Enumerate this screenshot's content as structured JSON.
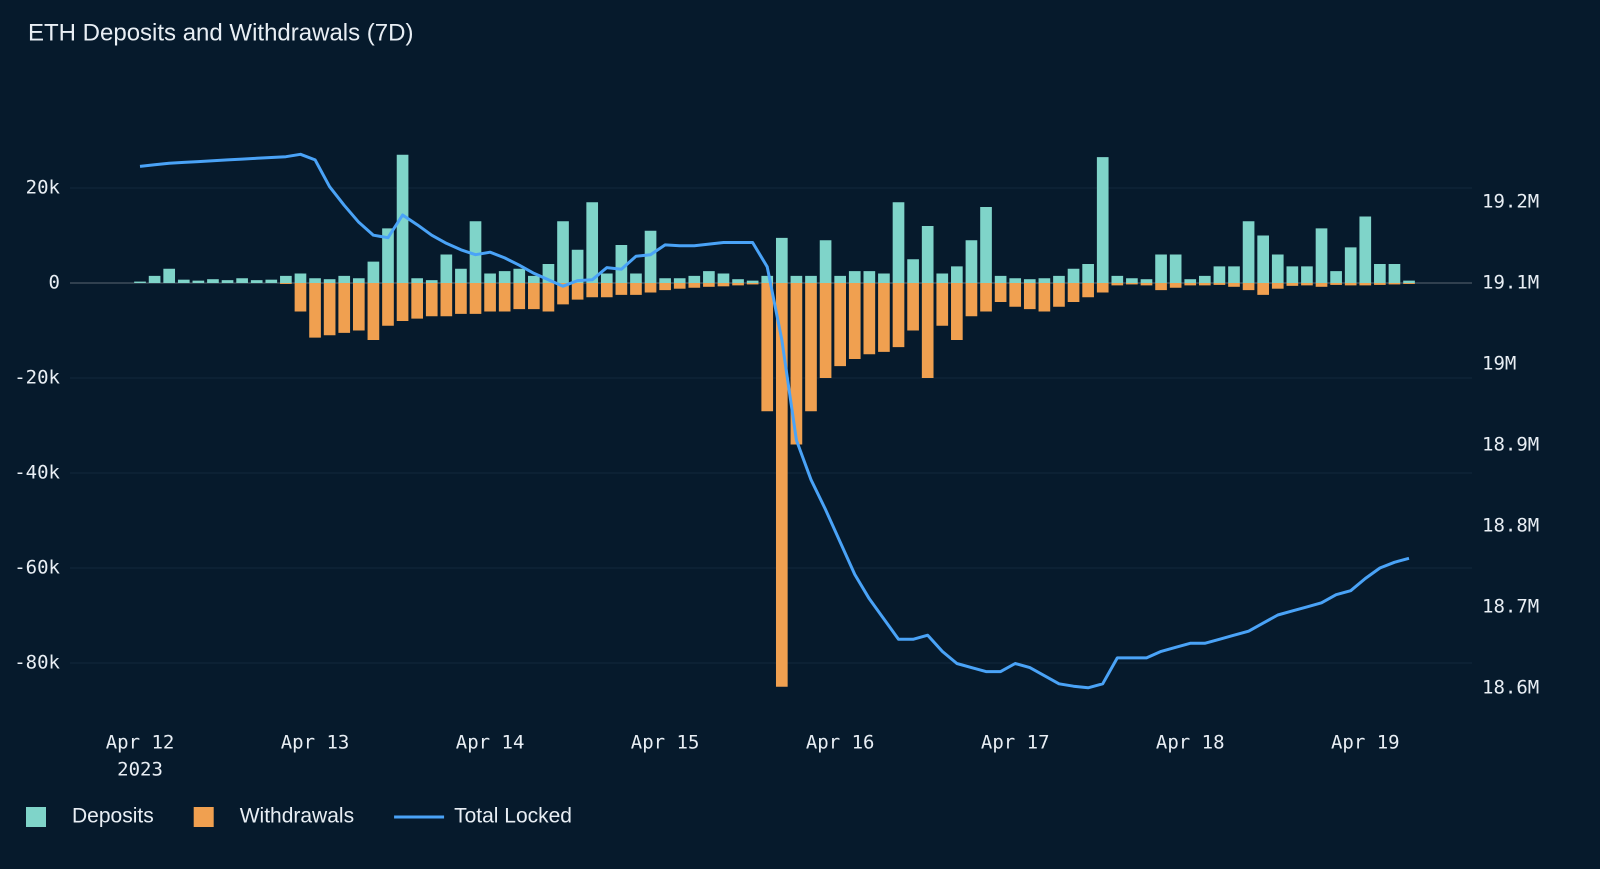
{
  "chart_data": {
    "type": "bar_line",
    "title": "ETH Deposits and Withdrawals (7D)",
    "x": [
      "2023-04-12T00:00",
      "2023-04-12T02:00",
      "2023-04-12T04:00",
      "2023-04-12T06:00",
      "2023-04-12T08:00",
      "2023-04-12T10:00",
      "2023-04-12T12:00",
      "2023-04-12T14:00",
      "2023-04-12T16:00",
      "2023-04-12T18:00",
      "2023-04-12T20:00",
      "2023-04-12T22:00",
      "2023-04-13T00:00",
      "2023-04-13T02:00",
      "2023-04-13T04:00",
      "2023-04-13T06:00",
      "2023-04-13T08:00",
      "2023-04-13T10:00",
      "2023-04-13T12:00",
      "2023-04-13T14:00",
      "2023-04-13T16:00",
      "2023-04-13T18:00",
      "2023-04-13T20:00",
      "2023-04-13T22:00",
      "2023-04-14T00:00",
      "2023-04-14T02:00",
      "2023-04-14T04:00",
      "2023-04-14T06:00",
      "2023-04-14T08:00",
      "2023-04-14T10:00",
      "2023-04-14T12:00",
      "2023-04-14T14:00",
      "2023-04-14T16:00",
      "2023-04-14T18:00",
      "2023-04-14T20:00",
      "2023-04-14T22:00",
      "2023-04-15T00:00",
      "2023-04-15T02:00",
      "2023-04-15T04:00",
      "2023-04-15T06:00",
      "2023-04-15T08:00",
      "2023-04-15T10:00",
      "2023-04-15T12:00",
      "2023-04-15T14:00",
      "2023-04-15T16:00",
      "2023-04-15T18:00",
      "2023-04-15T20:00",
      "2023-04-15T22:00",
      "2023-04-16T00:00",
      "2023-04-16T02:00",
      "2023-04-16T04:00",
      "2023-04-16T06:00",
      "2023-04-16T08:00",
      "2023-04-16T10:00",
      "2023-04-16T12:00",
      "2023-04-16T14:00",
      "2023-04-16T16:00",
      "2023-04-16T18:00",
      "2023-04-16T20:00",
      "2023-04-16T22:00",
      "2023-04-17T00:00",
      "2023-04-17T02:00",
      "2023-04-17T04:00",
      "2023-04-17T06:00",
      "2023-04-17T08:00",
      "2023-04-17T10:00",
      "2023-04-17T12:00",
      "2023-04-17T14:00",
      "2023-04-17T16:00",
      "2023-04-17T18:00",
      "2023-04-17T20:00",
      "2023-04-17T22:00",
      "2023-04-18T00:00",
      "2023-04-18T02:00",
      "2023-04-18T04:00",
      "2023-04-18T06:00",
      "2023-04-18T08:00",
      "2023-04-18T10:00",
      "2023-04-18T12:00",
      "2023-04-18T14:00",
      "2023-04-18T16:00",
      "2023-04-18T18:00",
      "2023-04-18T20:00",
      "2023-04-18T22:00",
      "2023-04-19T00:00",
      "2023-04-19T02:00",
      "2023-04-19T04:00",
      "2023-04-19T06:00"
    ],
    "series": [
      {
        "name": "Deposits",
        "color": "#7fd4c9",
        "type": "bar",
        "values": [
          300,
          1500,
          3000,
          700,
          500,
          800,
          600,
          1000,
          600,
          700,
          1500,
          2000,
          1000,
          800,
          1500,
          1000,
          4500,
          11500,
          27000,
          1000,
          600,
          6000,
          3000,
          13000,
          2000,
          2500,
          3000,
          1500,
          4000,
          13000,
          7000,
          17000,
          2000,
          8000,
          2000,
          11000,
          1000,
          1000,
          1500,
          2500,
          2000,
          800,
          500,
          1500,
          9500,
          1500,
          1500,
          9000,
          1500,
          2500,
          2500,
          2000,
          17000,
          5000,
          12000,
          2000,
          3500,
          9000,
          16000,
          1500,
          1000,
          800,
          1000,
          1500,
          3000,
          4000,
          26500,
          1500,
          1000,
          800,
          6000,
          6000,
          800,
          1500,
          3500,
          3500,
          13000,
          10000,
          6000,
          3500,
          3500,
          11500,
          2500,
          7500,
          14000,
          4000,
          4000,
          500
        ]
      },
      {
        "name": "Withdrawals",
        "color": "#f0a050",
        "type": "bar",
        "values": [
          0,
          0,
          0,
          0,
          0,
          0,
          0,
          0,
          0,
          0,
          -200,
          -6000,
          -11500,
          -11000,
          -10500,
          -10000,
          -12000,
          -9000,
          -8000,
          -7500,
          -7000,
          -7000,
          -6500,
          -6500,
          -6000,
          -6000,
          -5500,
          -5500,
          -6000,
          -4500,
          -3500,
          -3000,
          -3000,
          -2500,
          -2500,
          -2000,
          -1500,
          -1200,
          -1000,
          -800,
          -700,
          -500,
          -300,
          -27000,
          -85000,
          -34000,
          -27000,
          -20000,
          -17500,
          -16000,
          -15000,
          -14500,
          -13500,
          -10000,
          -20000,
          -9000,
          -12000,
          -7000,
          -6000,
          -4000,
          -5000,
          -5500,
          -6000,
          -5000,
          -4000,
          -3000,
          -2000,
          -500,
          -300,
          -500,
          -1500,
          -1000,
          -500,
          -500,
          -400,
          -800,
          -1500,
          -2500,
          -1200,
          -600,
          -500,
          -800,
          -400,
          -500,
          -500,
          -400,
          -300,
          -200
        ]
      },
      {
        "name": "Total Locked",
        "color": "#4aa3f7",
        "type": "line",
        "axis": "y2",
        "values": [
          19244000,
          19246000,
          19248000,
          19249000,
          19250000,
          19251000,
          19252000,
          19253000,
          19254000,
          19255000,
          19256000,
          19259000,
          19252000,
          19219000,
          19196000,
          19175000,
          19159000,
          19156000,
          19184000,
          19172000,
          19159000,
          19149000,
          19141000,
          19135000,
          19138000,
          19131000,
          19122000,
          19112000,
          19104000,
          19096000,
          19103000,
          19104000,
          19119000,
          19117000,
          19133000,
          19135000,
          19147000,
          19146000,
          19146000,
          19148000,
          19150000,
          19150000,
          19150000,
          19120000,
          19030000,
          18906000,
          18857000,
          18820000,
          18780000,
          18740000,
          18710000,
          18685000,
          18660000,
          18660000,
          18665000,
          18645000,
          18630000,
          18625000,
          18620000,
          18620000,
          18630000,
          18625000,
          18615000,
          18605000,
          18602000,
          18600000,
          18605000,
          18637000,
          18637000,
          18637000,
          18645000,
          18650000,
          18655000,
          18655000,
          18660000,
          18665000,
          18670000,
          18680000,
          18690000,
          18695000,
          18700000,
          18705000,
          18715000,
          18720000,
          18735000,
          18748000,
          18755000,
          18760000
        ]
      }
    ],
    "xlim": [
      "2023-04-11T14:24",
      "2023-04-19T14:38"
    ],
    "xticks": [
      {
        "value": "2023-04-12T00:00",
        "label": "Apr 12"
      },
      {
        "value": "2023-04-13T00:00",
        "label": "Apr 13"
      },
      {
        "value": "2023-04-14T00:00",
        "label": "Apr 14"
      },
      {
        "value": "2023-04-15T00:00",
        "label": "Apr 15"
      },
      {
        "value": "2023-04-16T00:00",
        "label": "Apr 16"
      },
      {
        "value": "2023-04-17T00:00",
        "label": "Apr 17"
      },
      {
        "value": "2023-04-18T00:00",
        "label": "Apr 18"
      },
      {
        "value": "2023-04-19T00:00",
        "label": "Apr 19"
      }
    ],
    "year_label": "2023",
    "ylim": [
      -90000,
      30000
    ],
    "yticks": [
      {
        "value": 20000,
        "label": "20k"
      },
      0,
      {
        "value": -20000,
        "label": "-20k"
      },
      {
        "value": -40000,
        "label": "-40k"
      },
      {
        "value": -60000,
        "label": "-60k"
      },
      {
        "value": -80000,
        "label": "-80k"
      }
    ],
    "y2lim": [
      18572000,
      19276000
    ],
    "y2ticks": [
      {
        "value": 19200000,
        "label": "19.2M"
      },
      {
        "value": 19100000,
        "label": "19.1M"
      },
      {
        "value": 19000000,
        "label": "19M"
      },
      {
        "value": 18900000,
        "label": "18.9M"
      },
      {
        "value": 18800000,
        "label": "18.8M"
      },
      {
        "value": 18700000,
        "label": "18.7M"
      },
      {
        "value": 18600000,
        "label": "18.6M"
      }
    ],
    "grid": true,
    "legend": "bottom-left"
  }
}
